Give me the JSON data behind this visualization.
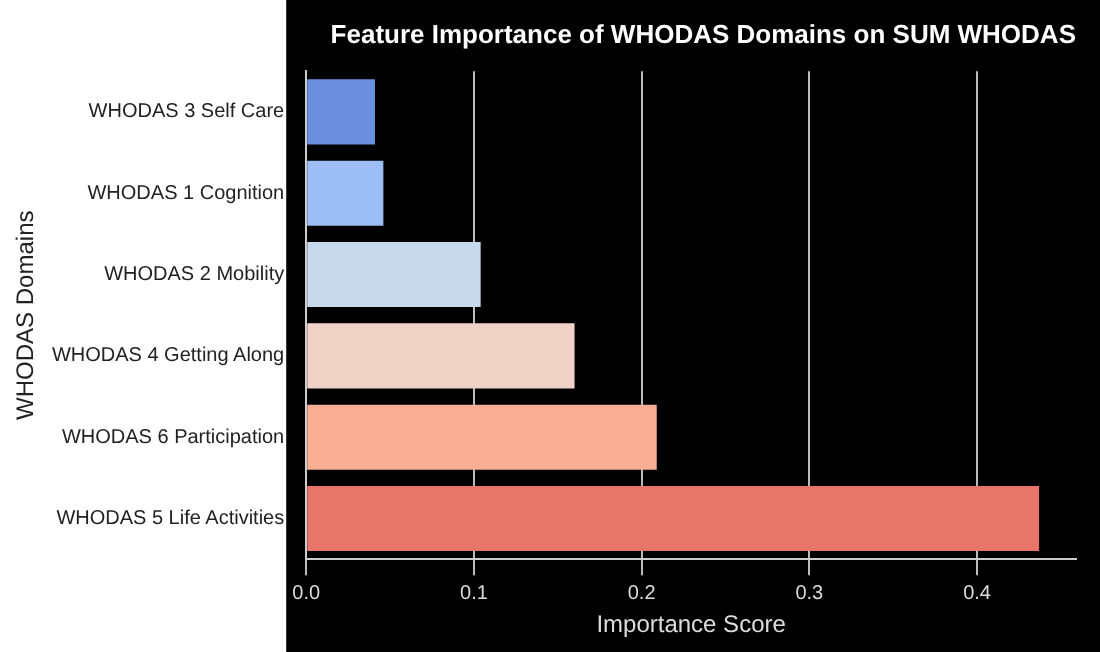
{
  "chart_data": {
    "type": "bar",
    "orientation": "horizontal",
    "title": "Feature Importance of WHODAS Domains on SUM WHODAS",
    "xlabel": "Importance Score",
    "ylabel": "WHODAS Domains",
    "categories": [
      "WHODAS 3 Self Care",
      "WHODAS 1 Cognition",
      "WHODAS 2 Mobility",
      "WHODAS 4 Getting Along",
      "WHODAS 6 Participation",
      "WHODAS 5 Life Activities"
    ],
    "values": [
      0.041,
      0.046,
      0.104,
      0.16,
      0.209,
      0.437
    ],
    "colors": [
      "#6d8fe0",
      "#9dbdf5",
      "#c9d9ec",
      "#f0d3c6",
      "#f7ae93",
      "#e7756a"
    ],
    "xlim": [
      0,
      0.459
    ],
    "xticks": [
      {
        "value": 0,
        "label": "0.0"
      },
      0.1,
      0.2,
      0.3,
      0.4
    ],
    "grid": "x",
    "legend": false
  }
}
